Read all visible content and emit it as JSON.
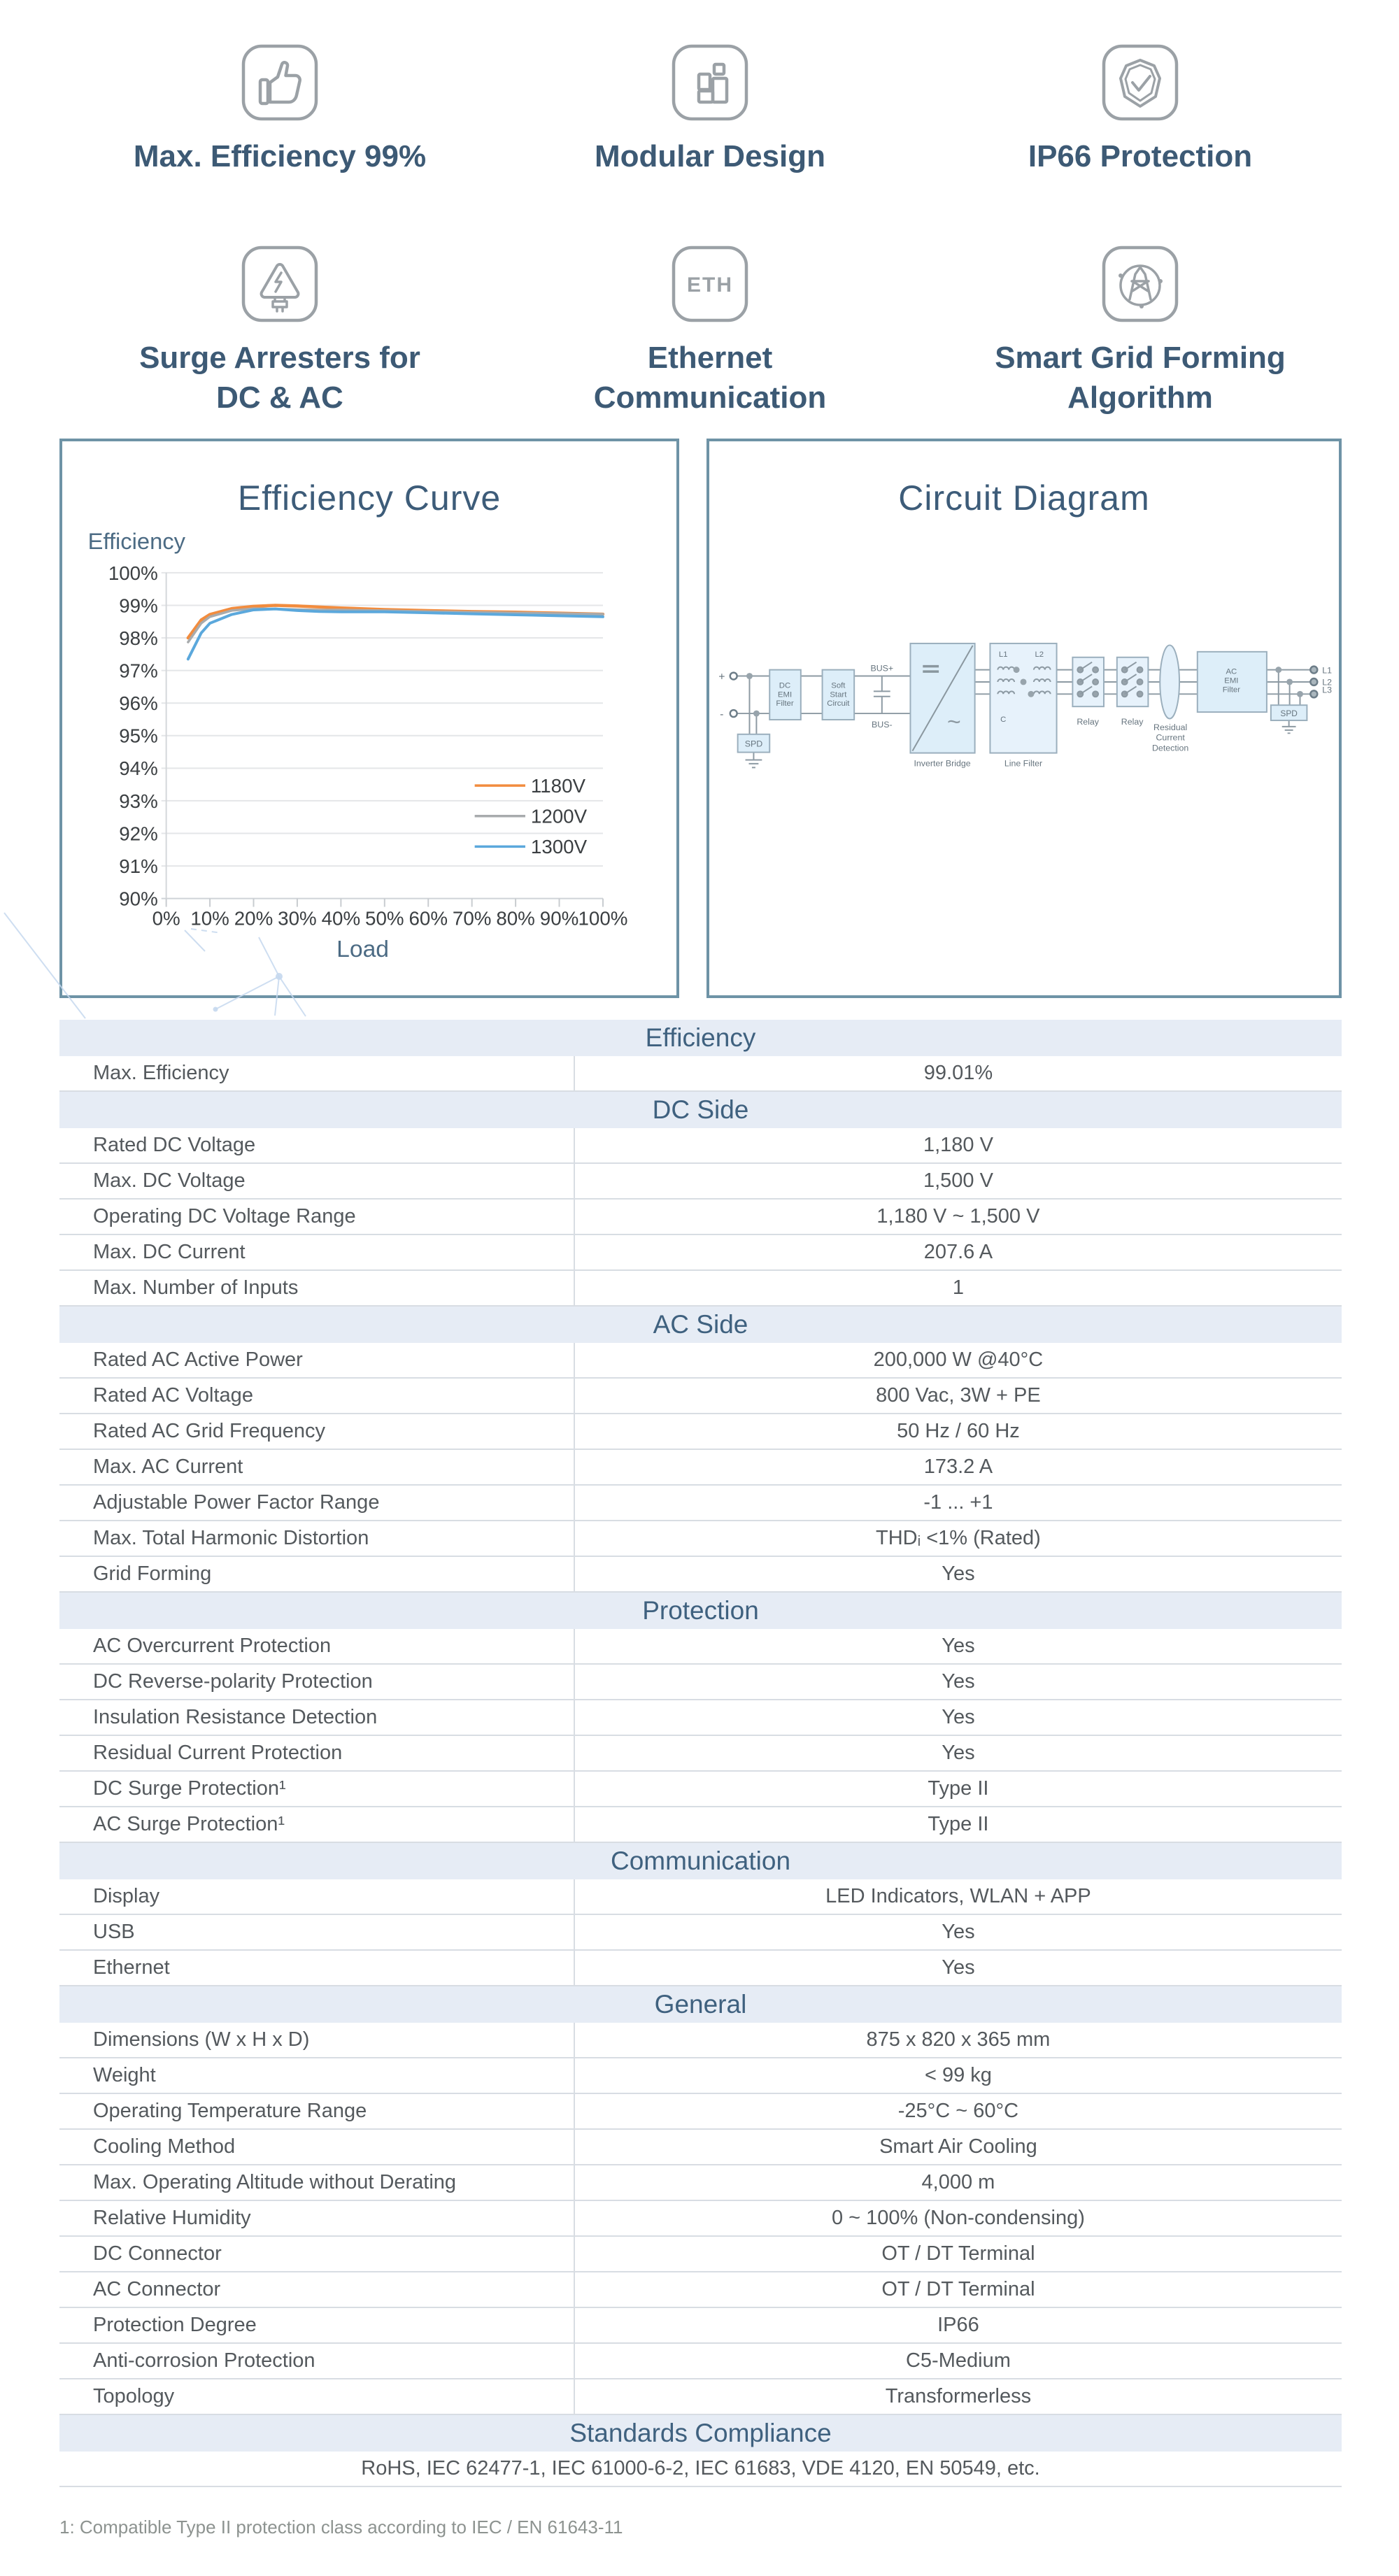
{
  "features": {
    "rows": [
      {
        "items": [
          {
            "icon": "thumbs-up-icon",
            "lines": [
              "Max. Efficiency 99%"
            ]
          },
          {
            "icon": "modular-design-icon",
            "lines": [
              "Modular Design"
            ]
          },
          {
            "icon": "shield-check-icon",
            "lines": [
              "IP66 Protection"
            ]
          }
        ]
      },
      {
        "items": [
          {
            "icon": "surge-arrester-icon",
            "lines": [
              "Surge Arresters for",
              "DC & AC"
            ]
          },
          {
            "icon": "ethernet-icon",
            "lines": [
              "Ethernet",
              "Communication"
            ],
            "glyph": "ETH"
          },
          {
            "icon": "smart-grid-icon",
            "lines": [
              "Smart Grid Forming",
              "Algorithm"
            ]
          }
        ]
      }
    ]
  },
  "chart_data": {
    "type": "line",
    "title": "Efficiency Curve",
    "xlabel": "Load",
    "ylabel": "Efficiency",
    "x": [
      5,
      8,
      10,
      15,
      20,
      25,
      30,
      35,
      40,
      50,
      60,
      70,
      80,
      90,
      100
    ],
    "series": [
      {
        "name": "1180V",
        "color": "#f28c3e",
        "width": 4.5,
        "values": [
          98.0,
          98.55,
          98.72,
          98.9,
          98.97,
          99.0,
          98.98,
          98.95,
          98.92,
          98.87,
          98.84,
          98.81,
          98.79,
          98.76,
          98.73
        ]
      },
      {
        "name": "1200V",
        "color": "#a8abad",
        "width": 3.5,
        "values": [
          97.87,
          98.45,
          98.65,
          98.84,
          98.9,
          98.89,
          98.87,
          98.86,
          98.86,
          98.84,
          98.81,
          98.79,
          98.77,
          98.75,
          98.73
        ]
      },
      {
        "name": "1300V",
        "color": "#5ba8dc",
        "width": 4,
        "values": [
          97.35,
          98.15,
          98.45,
          98.72,
          98.86,
          98.89,
          98.84,
          98.81,
          98.8,
          98.8,
          98.77,
          98.74,
          98.71,
          98.68,
          98.65
        ]
      }
    ],
    "ylim": [
      90,
      100
    ],
    "xlim": [
      0,
      100
    ],
    "y_tick_labels": [
      "90%",
      "91%",
      "92%",
      "93%",
      "94%",
      "95%",
      "96%",
      "97%",
      "98%",
      "99%",
      "100%"
    ],
    "x_tick_labels": [
      "0%",
      "10%",
      "20%",
      "30%",
      "40%",
      "50%",
      "60%",
      "70%",
      "80%",
      "90%",
      "100%"
    ],
    "grid": true,
    "legend_position": "right-middle"
  },
  "circuit": {
    "title": "Circuit Diagram",
    "labels": {
      "plus": "+",
      "minus": "-",
      "spd_left": "SPD",
      "spd_right": "SPD",
      "dc_emi": [
        "DC",
        "EMI",
        "Filter"
      ],
      "soft_start": [
        "Soft",
        "Start",
        "Circuit"
      ],
      "bus_plus": "BUS+",
      "bus_minus": "BUS-",
      "dc_symbol": "=",
      "ac_symbol": "~",
      "inverter_bridge": "Inverter Bridge",
      "line_filter": "Line Filter",
      "l1": "L1",
      "l2": "L2",
      "c": "C",
      "relay1": "Relay",
      "relay2": "Relay",
      "rcd": [
        "Residual",
        "Current",
        "Detection"
      ],
      "ac_emi": [
        "AC",
        "EMI",
        "Filter"
      ],
      "out_l1": "L1",
      "out_l2": "L2",
      "out_l3": "L3"
    }
  },
  "table": {
    "sections": [
      {
        "header": "Efficiency",
        "rows": [
          [
            "Max. Efficiency",
            "99.01%"
          ]
        ]
      },
      {
        "header": "DC Side",
        "rows": [
          [
            "Rated DC Voltage",
            "1,180 V"
          ],
          [
            "Max. DC Voltage",
            "1,500 V"
          ],
          [
            "Operating DC Voltage Range",
            "1,180 V ~ 1,500 V"
          ],
          [
            "Max. DC Current",
            "207.6 A"
          ],
          [
            "Max. Number of Inputs",
            "1"
          ]
        ]
      },
      {
        "header": "AC Side",
        "rows": [
          [
            "Rated AC Active Power",
            "200,000 W @40°C"
          ],
          [
            "Rated AC Voltage",
            "800 Vac, 3W + PE"
          ],
          [
            "Rated AC Grid Frequency",
            "50 Hz / 60 Hz"
          ],
          [
            "Max. AC Current",
            "173.2 A"
          ],
          [
            "Adjustable Power Factor Range",
            "-1 ... +1"
          ],
          [
            "Max. Total Harmonic Distortion",
            "THDᵢ <1% (Rated)"
          ],
          [
            "Grid Forming",
            "Yes"
          ]
        ]
      },
      {
        "header": "Protection",
        "rows": [
          [
            "AC Overcurrent Protection",
            "Yes"
          ],
          [
            "DC Reverse-polarity Protection",
            "Yes"
          ],
          [
            "Insulation Resistance Detection",
            "Yes"
          ],
          [
            "Residual Current Protection",
            "Yes"
          ],
          [
            "DC Surge Protection¹",
            "Type II"
          ],
          [
            "AC Surge Protection¹",
            "Type II"
          ]
        ]
      },
      {
        "header": "Communication",
        "rows": [
          [
            "Display",
            "LED Indicators, WLAN + APP"
          ],
          [
            "USB",
            "Yes"
          ],
          [
            "Ethernet",
            "Yes"
          ]
        ]
      },
      {
        "header": "General",
        "rows": [
          [
            "Dimensions (W x H x D)",
            "875 x 820 x 365 mm"
          ],
          [
            "Weight",
            "< 99 kg"
          ],
          [
            "Operating Temperature Range",
            "-25°C ~ 60°C"
          ],
          [
            "Cooling Method",
            "Smart Air Cooling"
          ],
          [
            "Max. Operating Altitude without Derating",
            "4,000 m"
          ],
          [
            "Relative Humidity",
            "0 ~ 100% (Non-condensing)"
          ],
          [
            "DC Connector",
            "OT / DT Terminal"
          ],
          [
            "AC Connector",
            "OT / DT Terminal"
          ],
          [
            "Protection Degree",
            "IP66"
          ],
          [
            "Anti-corrosion Protection",
            "C5-Medium"
          ],
          [
            "Topology",
            "Transformerless"
          ]
        ]
      },
      {
        "header": "Standards Compliance",
        "full_width": true,
        "rows": [
          [
            "",
            "RoHS, IEC 62477-1, IEC 61000-6-2, IEC 61683, VDE 4120, EN 50549, etc."
          ]
        ]
      }
    ]
  },
  "footnote": "1: Compatible Type II protection class according to IEC / EN 61643-11"
}
